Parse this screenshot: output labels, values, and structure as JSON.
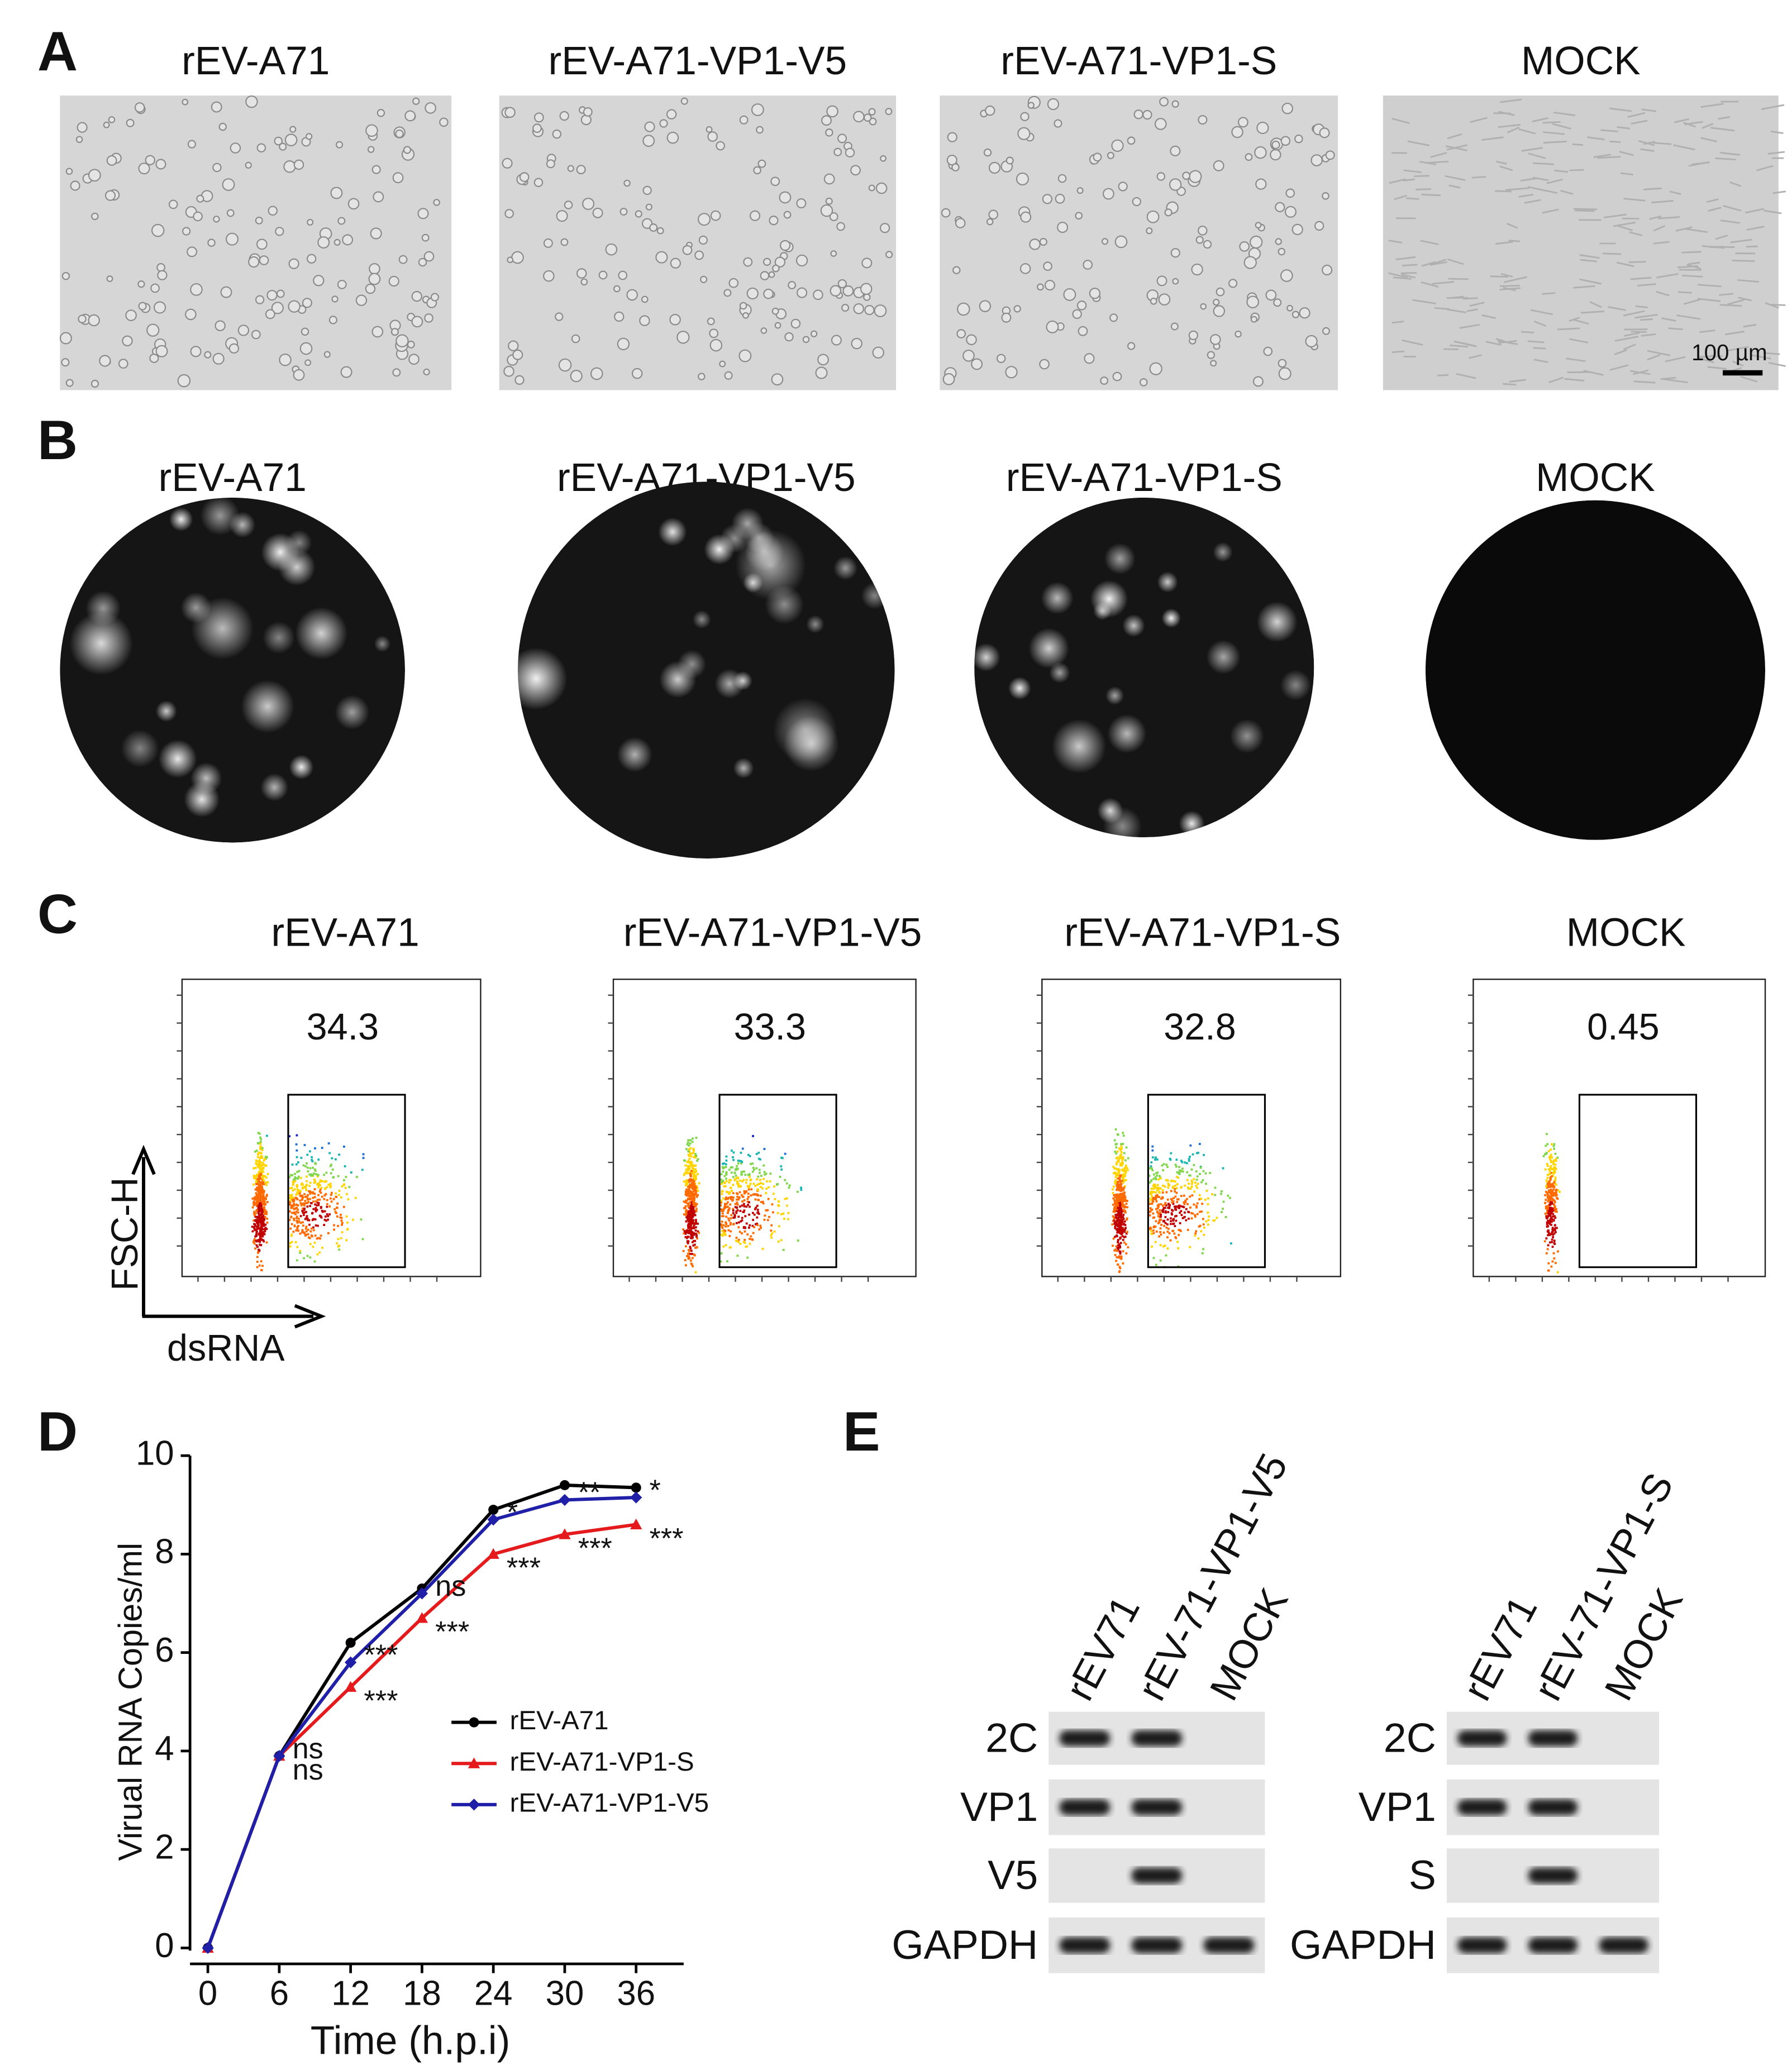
{
  "panel_labels": [
    "A",
    "B",
    "C",
    "D",
    "E"
  ],
  "panel_a": {
    "titles": [
      "rEV-A71",
      "rEV-A71-VP1-V5",
      "rEV-A71-VP1-S",
      "MOCK"
    ],
    "scale_bar": "100 µm"
  },
  "panel_b": {
    "titles": [
      "rEV-A71",
      "rEV-A71-VP1-V5",
      "rEV-A71-VP1-S",
      "MOCK"
    ]
  },
  "panel_c": {
    "titles": [
      "rEV-A71",
      "rEV-A71-VP1-V5",
      "rEV-A71-VP1-S",
      "MOCK"
    ],
    "gate_percentages": [
      34.3,
      33.3,
      32.8,
      0.45
    ],
    "y_axis_label": "FSC-H",
    "x_axis_label": "dsRNA"
  },
  "chart_data": {
    "type": "line",
    "x_label": "Time (h.p.i)",
    "y_label": "Virual RNA Copies/ml",
    "x": [
      0,
      6,
      12,
      18,
      24,
      30,
      36
    ],
    "series": [
      {
        "name": "rEV-A71",
        "color": "#000000",
        "marker": "circle",
        "values": [
          0,
          3.9,
          6.2,
          7.3,
          8.9,
          9.4,
          9.35
        ]
      },
      {
        "name": "rEV-A71-VP1-S",
        "color": "#e41a1c",
        "marker": "triangle",
        "values": [
          0,
          3.9,
          5.3,
          6.7,
          8.0,
          8.4,
          8.6
        ],
        "significance": [
          null,
          "ns",
          "***",
          "***",
          "***",
          "***",
          "***"
        ]
      },
      {
        "name": "rEV-A71-VP1-V5",
        "color": "#1f1fa8",
        "marker": "diamond",
        "values": [
          0,
          3.9,
          5.8,
          7.2,
          8.7,
          9.1,
          9.15
        ],
        "significance": [
          null,
          "ns",
          "***",
          "ns",
          "*",
          "**",
          "*"
        ]
      }
    ],
    "xlim": [
      -1.5,
      40
    ],
    "ylim": [
      0,
      10
    ],
    "xticks": [
      0,
      6,
      12,
      18,
      24,
      30,
      36
    ],
    "yticks": [
      0,
      2,
      4,
      6,
      8,
      10
    ],
    "grid": false
  },
  "panel_e": {
    "blots": [
      {
        "lanes": [
          "rEV71",
          "rEV-71-VP1-V5",
          "MOCK"
        ],
        "rows": [
          "2C",
          "VP1",
          "V5",
          "GAPDH"
        ]
      },
      {
        "lanes": [
          "rEV71",
          "rEV-71-VP1-S",
          "MOCK"
        ],
        "rows": [
          "2C",
          "VP1",
          "S",
          "GAPDH"
        ]
      }
    ]
  }
}
